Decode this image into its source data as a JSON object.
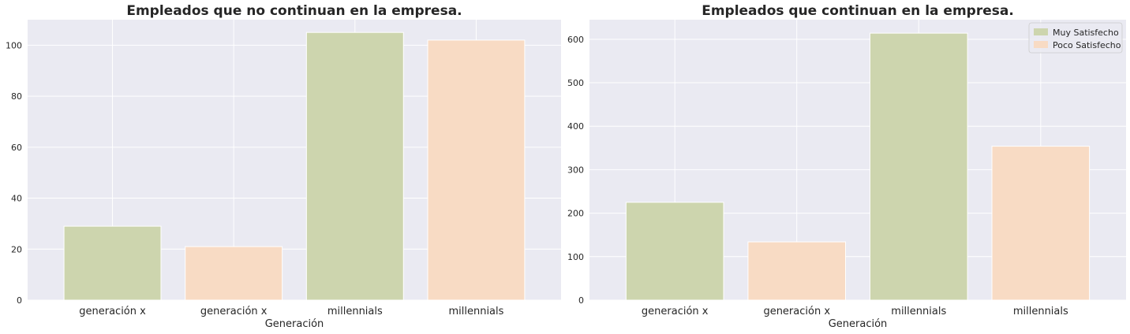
{
  "colors": {
    "plot_background": "#eaeaf2",
    "grid": "#ffffff",
    "muy_satisfecho": "#cdd5ae",
    "poco_satisfecho": "#f8dbc4"
  },
  "chart_data": [
    {
      "type": "bar",
      "title": "Empleados que no continuan en la empresa.",
      "xlabel": "Generación",
      "ylabel": "",
      "categories": [
        "generación x",
        "generación x",
        "millennials",
        "millennials"
      ],
      "values": [
        29,
        21,
        105,
        102
      ],
      "bar_color_keys": [
        "muy_satisfecho",
        "poco_satisfecho",
        "muy_satisfecho",
        "poco_satisfecho"
      ],
      "ylim": [
        0,
        110
      ],
      "yticks": [
        0,
        20,
        40,
        60,
        80,
        100
      ],
      "grid": true,
      "legend": null
    },
    {
      "type": "bar",
      "title": "Empleados que continuan en la empresa.",
      "xlabel": "Generación",
      "ylabel": "",
      "categories": [
        "generación x",
        "generación x",
        "millennials",
        "millennials"
      ],
      "values": [
        225,
        134,
        614,
        354
      ],
      "bar_color_keys": [
        "muy_satisfecho",
        "poco_satisfecho",
        "muy_satisfecho",
        "poco_satisfecho"
      ],
      "ylim": [
        0,
        645
      ],
      "yticks": [
        0,
        100,
        200,
        300,
        400,
        500,
        600
      ],
      "grid": true,
      "legend": {
        "placement": "top-right",
        "entries": [
          {
            "label": "Muy Satisfecho",
            "color_key": "muy_satisfecho"
          },
          {
            "label": "Poco Satisfecho",
            "color_key": "poco_satisfecho"
          }
        ]
      }
    }
  ]
}
